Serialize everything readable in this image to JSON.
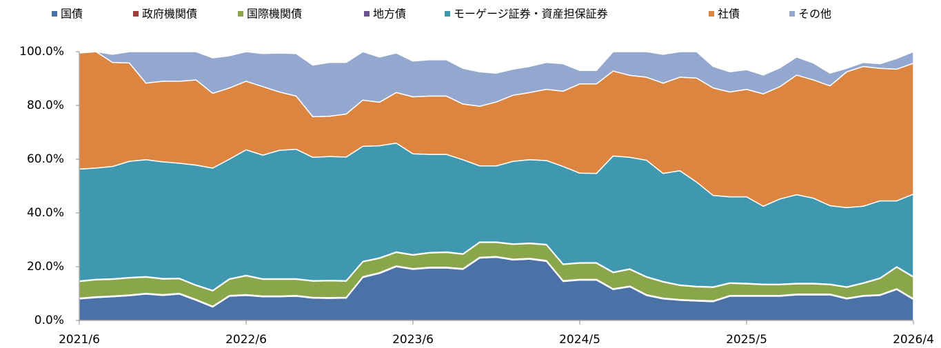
{
  "chart_data": {
    "type": "stacked_area",
    "categories": [
      "2021/6",
      null,
      null,
      null,
      null,
      null,
      null,
      null,
      null,
      null,
      "2022/6",
      null,
      null,
      null,
      null,
      null,
      null,
      null,
      null,
      null,
      "2023/6",
      null,
      null,
      null,
      null,
      null,
      null,
      null,
      null,
      null,
      "2024/5",
      null,
      null,
      null,
      null,
      null,
      null,
      null,
      null,
      null,
      "2025/5",
      null,
      null,
      null,
      null,
      null,
      null,
      null,
      null,
      null,
      "2026/4"
    ],
    "series": [
      {
        "name": "国債",
        "color": "#4a72a6",
        "values": [
          8,
          8.5,
          8.8,
          9.2,
          9.8,
          9.3,
          9.8,
          7.5,
          5,
          9,
          9.3,
          8.8,
          8.8,
          9,
          8.3,
          8.2,
          8.3,
          16,
          17.5,
          20,
          19,
          19.5,
          19.5,
          19,
          23.2,
          23.5,
          22.5,
          22.8,
          22,
          14.5,
          15,
          15,
          11.5,
          12.5,
          9.3,
          8,
          7.5,
          7.2,
          7,
          9,
          9,
          9,
          9,
          9.5,
          9.5,
          9.5,
          8,
          9,
          9.3,
          11.5,
          7.8
        ]
      },
      {
        "name": "政府機関債",
        "color": "#a83a3a",
        "values": [
          0.3,
          0.3,
          0.3,
          0.3,
          0.3,
          0.3,
          0.3,
          0.3,
          0.3,
          0.3,
          0.3,
          0.3,
          0.3,
          0.3,
          0.3,
          0.3,
          0.3,
          0.3,
          0.3,
          0.3,
          0.3,
          0.3,
          0.3,
          0.3,
          0.3,
          0.3,
          0.3,
          0.3,
          0.3,
          0.3,
          0.3,
          0.3,
          0.3,
          0.3,
          0.3,
          0.3,
          0.3,
          0.3,
          0.3,
          0.3,
          0.3,
          0.3,
          0.3,
          0.3,
          0.3,
          0.3,
          0.3,
          0.3,
          0.3,
          0.3,
          0.3
        ]
      },
      {
        "name": "国際機関債",
        "color": "#8aa64b",
        "values": [
          6.2,
          6.3,
          6.2,
          6.3,
          6,
          5.8,
          5.4,
          5.2,
          5.7,
          6,
          7,
          6.2,
          6.2,
          6,
          6,
          6.2,
          6,
          5.5,
          5.3,
          5,
          5,
          5.3,
          5.5,
          5.3,
          5.5,
          5.2,
          5.5,
          5.5,
          5.8,
          6,
          6,
          6,
          6,
          6.2,
          6.5,
          6,
          5.2,
          5,
          5,
          4.5,
          4.3,
          4,
          4,
          3.8,
          3.8,
          3.5,
          4,
          4.5,
          6,
          8,
          8
        ]
      },
      {
        "name": "地方債",
        "color": "#6e548f",
        "values": [
          0.2,
          0.2,
          0.2,
          0.2,
          0.2,
          0.2,
          0.2,
          0.2,
          0.2,
          0.2,
          0.2,
          0.2,
          0.2,
          0.2,
          0.2,
          0.2,
          0.2,
          0.2,
          0.2,
          0.2,
          0.2,
          0.2,
          0.2,
          0.2,
          0.2,
          0.2,
          0.2,
          0.2,
          0.2,
          0.2,
          0.2,
          0.2,
          0.2,
          0.2,
          0.2,
          0.2,
          0.2,
          0.2,
          0.2,
          0.2,
          0.2,
          0.2,
          0.2,
          0.2,
          0.2,
          0.2,
          0.2,
          0.2,
          0.2,
          0.2,
          0.2
        ]
      },
      {
        "name": "モーゲージ証券・資産担保証券",
        "color": "#3f97b0",
        "values": [
          41.6,
          41.4,
          41.8,
          43.2,
          43.5,
          43.4,
          42.8,
          44.6,
          45.5,
          44.5,
          46.7,
          46,
          47.8,
          48.2,
          45.9,
          46.1,
          46,
          42.8,
          41.7,
          40.5,
          37.5,
          36.5,
          36.3,
          35,
          28.3,
          28.3,
          30.7,
          31,
          31.2,
          36.3,
          33.3,
          33.2,
          43.2,
          41.5,
          43.3,
          40.2,
          42.5,
          38.8,
          34,
          32,
          32.2,
          29,
          31.7,
          33,
          31.7,
          29.2,
          29.5,
          28.5,
          28.7,
          24.5,
          30.7
        ]
      },
      {
        "name": "社債",
        "color": "#db8540",
        "values": [
          43.2,
          43.3,
          38.7,
          36.6,
          28.5,
          30,
          30.5,
          31.7,
          27.8,
          26.5,
          25.5,
          25.5,
          21.7,
          19.8,
          15.1,
          15,
          16,
          17.2,
          16.2,
          18.8,
          21.2,
          21.7,
          21.7,
          20.7,
          22.2,
          23.8,
          24.6,
          25,
          26.5,
          28,
          33.2,
          33.3,
          31.6,
          30.5,
          30.9,
          33.6,
          34.8,
          38.7,
          40,
          39,
          40,
          41.8,
          41.8,
          44.5,
          44,
          44.6,
          50.5,
          52,
          49.3,
          49,
          48.7
        ]
      },
      {
        "name": "その他",
        "color": "#93a7cf",
        "values": [
          0,
          0,
          3,
          4.2,
          11.7,
          11,
          11,
          10.5,
          13.2,
          12,
          11,
          12.3,
          14.5,
          15.8,
          19.2,
          20,
          19.2,
          18,
          16.8,
          14.7,
          13.3,
          13.5,
          13.5,
          13.3,
          12.8,
          10.7,
          9.7,
          9.7,
          10,
          10.2,
          5,
          5,
          7.2,
          8.8,
          9.5,
          10.7,
          9.5,
          9.8,
          8,
          7.5,
          7.3,
          7,
          7,
          6.7,
          6.3,
          4.7,
          1.3,
          1.5,
          1.7,
          4,
          4.3
        ]
      }
    ],
    "ylim": [
      0,
      100
    ],
    "yticks": [
      {
        "value": 0,
        "label": "0.0%"
      },
      {
        "value": 20,
        "label": "20.0%"
      },
      {
        "value": 40,
        "label": "40.0%"
      },
      {
        "value": 60,
        "label": "60.0%"
      },
      {
        "value": 80,
        "label": "80.0%"
      },
      {
        "value": 100,
        "label": "100.0%"
      }
    ],
    "legend": "top"
  }
}
